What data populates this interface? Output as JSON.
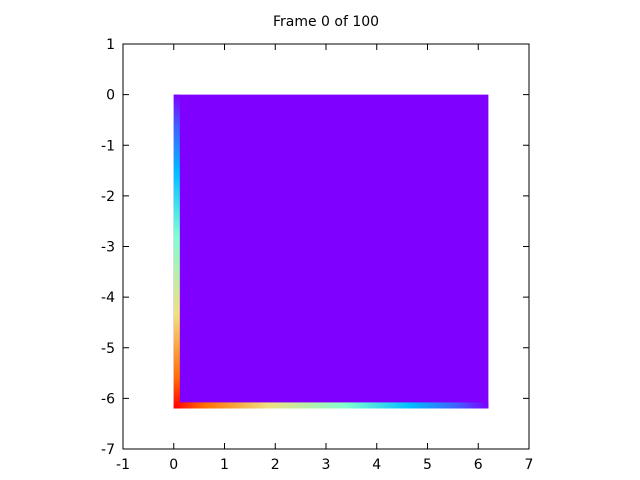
{
  "chart_data": {
    "type": "heatmap",
    "title": "Frame 0 of 100",
    "xlabel": "",
    "ylabel": "",
    "xlim": [
      -1,
      7
    ],
    "ylim": [
      -7,
      1
    ],
    "xticks": [
      "-1",
      "0",
      "1",
      "2",
      "3",
      "4",
      "5",
      "6",
      "7"
    ],
    "yticks": [
      "1",
      "0",
      "-1",
      "-2",
      "-3",
      "-4",
      "-5",
      "-6",
      "-7"
    ],
    "grid": false,
    "legend": "none",
    "colormap": "rainbow",
    "field": {
      "x_range": [
        0,
        6.2
      ],
      "y_range": [
        -6.2,
        0
      ],
      "base_value_color": "#7f00ff",
      "edge_x": 0,
      "edge_y": -6.2,
      "edge_width": 0.12
    },
    "colors": {
      "low": "#7f00ff",
      "high": "#ff0000",
      "gradient_stops": [
        "#ff0000",
        "#ff8000",
        "#e0e070",
        "#80ffd0",
        "#00b0ff",
        "#4060ff",
        "#7f00ff"
      ]
    }
  }
}
